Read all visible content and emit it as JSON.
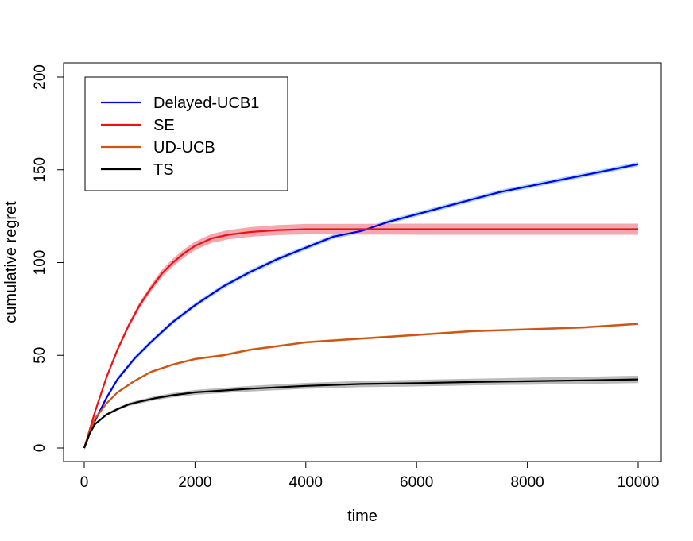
{
  "chart_data": {
    "type": "line",
    "title": "",
    "xlabel": "time",
    "ylabel": "cumulative regret",
    "xlim": [
      0,
      10000
    ],
    "ylim": [
      0,
      200
    ],
    "xticks": [
      0,
      2000,
      4000,
      6000,
      8000,
      10000
    ],
    "yticks": [
      0,
      50,
      100,
      150,
      200
    ],
    "xtick_labels": [
      "0",
      "2000",
      "4000",
      "6000",
      "8000",
      "10000"
    ],
    "ytick_labels": [
      "0",
      "50",
      "100",
      "150",
      "200"
    ],
    "grid": false,
    "legend_position": "top-left",
    "series": [
      {
        "name": "Delayed-UCB1",
        "color": "#0000ee",
        "band_color": "#aad4f5",
        "x": [
          0,
          100,
          200,
          400,
          600,
          900,
          1200,
          1600,
          2000,
          2500,
          3000,
          3500,
          4000,
          4500,
          5000,
          5500,
          6000,
          6500,
          7000,
          7500,
          8000,
          8500,
          9000,
          9500,
          10000
        ],
        "y": [
          0,
          8,
          15,
          27,
          37,
          48,
          57,
          68,
          77,
          87,
          95,
          102,
          108,
          114,
          117,
          122,
          126,
          130,
          134,
          138,
          141,
          144,
          147,
          150,
          153
        ],
        "band": [
          1.2,
          1.2,
          1.2,
          1.2,
          1.2,
          1.2,
          1.2,
          1.2,
          1.2,
          1.2,
          1.2,
          1.2,
          1.2,
          1.2,
          1.2,
          1.2,
          1.2,
          1.2,
          1.2,
          1.2,
          1.2,
          1.2,
          1.2,
          1.2,
          1.2
        ]
      },
      {
        "name": "SE",
        "color": "#ee1111",
        "band_color": "#f4a7b0",
        "x": [
          0,
          100,
          200,
          400,
          600,
          800,
          1000,
          1200,
          1400,
          1600,
          1800,
          2000,
          2300,
          2600,
          3000,
          3500,
          4000,
          5000,
          6000,
          8000,
          10000
        ],
        "y": [
          0,
          10,
          20,
          38,
          53,
          66,
          77,
          86,
          94,
          100,
          105,
          109,
          113,
          115,
          116.5,
          117.5,
          118,
          118,
          118,
          118,
          118
        ],
        "band": [
          0.4,
          0.5,
          0.7,
          1,
          1.2,
          1.4,
          1.6,
          1.8,
          2,
          2.1,
          2.2,
          2.3,
          2.4,
          2.5,
          2.6,
          2.7,
          2.8,
          2.9,
          3,
          3,
          3
        ]
      },
      {
        "name": "UD-UCB",
        "color": "#cc5511",
        "band_color": "#e8a070",
        "x": [
          0,
          100,
          200,
          400,
          600,
          900,
          1200,
          1600,
          2000,
          2500,
          3000,
          3500,
          4000,
          5000,
          6000,
          7000,
          8000,
          9000,
          10000
        ],
        "y": [
          0,
          9,
          16,
          24,
          30,
          36,
          41,
          45,
          48,
          50,
          53,
          55,
          57,
          59,
          61,
          63,
          64,
          65,
          67
        ],
        "band": [
          0.6,
          0.6,
          0.6,
          0.6,
          0.6,
          0.6,
          0.6,
          0.6,
          0.6,
          0.6,
          0.6,
          0.6,
          0.6,
          0.6,
          0.6,
          0.6,
          0.6,
          0.6,
          0.6
        ]
      },
      {
        "name": "TS",
        "color": "#000000",
        "band_color": "#bbbbbb",
        "x": [
          0,
          100,
          200,
          400,
          600,
          800,
          1000,
          1300,
          1600,
          2000,
          2500,
          3000,
          4000,
          5000,
          6000,
          7000,
          8000,
          9000,
          10000
        ],
        "y": [
          0,
          8,
          13,
          18,
          21,
          23.5,
          25,
          27,
          28.5,
          30,
          31,
          32,
          33.5,
          34.5,
          35,
          35.6,
          36,
          36.5,
          37
        ],
        "band": [
          0.3,
          0.5,
          0.6,
          0.7,
          0.8,
          0.9,
          1,
          1.1,
          1.2,
          1.3,
          1.4,
          1.5,
          1.6,
          1.7,
          1.8,
          1.8,
          1.9,
          1.9,
          2
        ]
      }
    ]
  }
}
